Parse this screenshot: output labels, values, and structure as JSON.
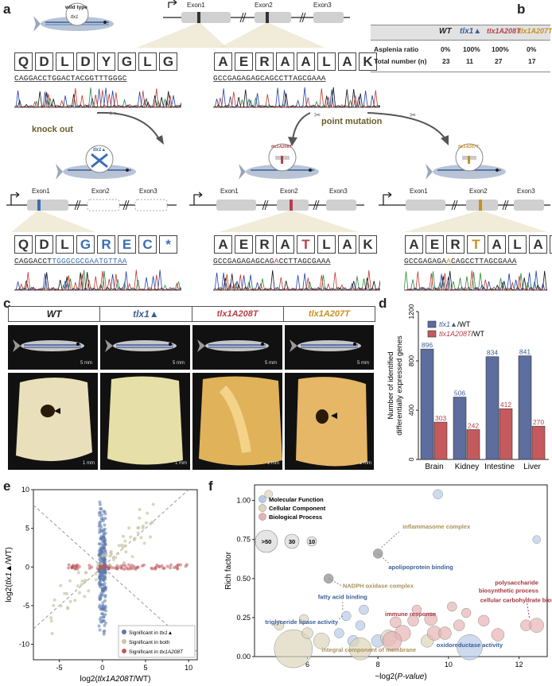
{
  "panel_labels": {
    "a": "a",
    "b": "b",
    "c": "c",
    "d": "d",
    "e": "e",
    "f": "f"
  },
  "panel_a": {
    "wild_type_label": "wild type",
    "gene_label": "tlx1",
    "exons": [
      "Exon1",
      "Exon2",
      "Exon3"
    ],
    "wt_seq1_aa": [
      "Q",
      "D",
      "L",
      "D",
      "Y",
      "G",
      "L",
      "G"
    ],
    "wt_seq1_dna": "CAGGACCTGGACTACGGTTTGGGC",
    "wt_seq2_aa": [
      "A",
      "E",
      "R",
      "A",
      "A",
      "L",
      "A",
      "K"
    ],
    "wt_seq2_dna": "GCCGAGAGAGCAGCCTTAGCGAAA",
    "knock_out_label": "knock out",
    "point_mutation_label": "point mutation",
    "ko_aa": [
      "Q",
      "D",
      "L",
      "G",
      "R",
      "E",
      "C",
      "*"
    ],
    "ko_dna_pre": "CAGGACCT",
    "ko_dna_mut": "TGGGCGCGAATGTTAA",
    "a208t_aa": [
      "A",
      "E",
      "R",
      "A",
      "T",
      "L",
      "A",
      "K"
    ],
    "a208t_dna_pre": "GCCGAGAGAGCAG",
    "a208t_dna_mut": "A",
    "a208t_dna_post": "CCTTAGCGAAA",
    "a207t_aa": [
      "A",
      "E",
      "R",
      "T",
      "A",
      "L",
      "A",
      "K"
    ],
    "a207t_dna_pre": "GCCGAGAGA",
    "a207t_dna_mut": "A",
    "a207t_dna_post": "CAGCCTTAGCGAAA",
    "ko_fish_label": "tlx1▲",
    "a208t_fish_label": "tlx1A208T",
    "a207t_fish_label": "tlx1A207T"
  },
  "panel_b": {
    "headers": [
      "WT",
      "tlx1▲",
      "tlx1A208T",
      "tlx1A207T"
    ],
    "rows": [
      {
        "label": "Asplenia ratio",
        "values": [
          "0%",
          "100%",
          "100%",
          "0%"
        ]
      },
      {
        "label": "Total number (n)",
        "values": [
          "23",
          "11",
          "27",
          "17"
        ]
      }
    ]
  },
  "panel_c": {
    "columns": [
      "WT",
      "tlx1▲",
      "tlx1A208T",
      "tlx1A207T"
    ],
    "scale_top": "5 mm",
    "scale_bottom": "1 mm"
  },
  "colors": {
    "blue": "#3a5f9a",
    "red": "#b5404a",
    "orange": "#c9901f",
    "gray_bar": "#5c6d9e",
    "red_bar": "#c45a5e"
  },
  "chart_data": [
    {
      "type": "bar",
      "ylabel": "Number of identified differentially expressed genes",
      "categories": [
        "Brain",
        "Kidney",
        "Intestine",
        "Liver"
      ],
      "ylim": [
        0,
        1200
      ],
      "yticks": [
        0,
        400,
        800,
        1200
      ],
      "legend": [
        "tlx1▲/WT",
        "tlx1A208T/WT"
      ],
      "series": [
        {
          "name": "tlx1▲/WT",
          "values": [
            896,
            506,
            834,
            841
          ]
        },
        {
          "name": "tlx1A208T/WT",
          "values": [
            303,
            242,
            412,
            270
          ]
        }
      ]
    },
    {
      "type": "scatter",
      "xlabel": "log2(tlx1A208T/WT)",
      "ylabel": "log2(tlx1▲/WT)",
      "xlim": [
        -8,
        11
      ],
      "ylim": [
        -12,
        10
      ],
      "xticks": [
        -5,
        0,
        5,
        10
      ],
      "yticks": [
        -10,
        -5,
        0,
        5,
        10
      ],
      "legend": [
        "Significant in tlx1▲",
        "Significant in both",
        "Significant in tlx1A208T"
      ]
    },
    {
      "type": "scatter",
      "xlabel": "−log2(P-value)",
      "ylabel": "Rich factor",
      "xlim": [
        4.5,
        12.8
      ],
      "ylim": [
        0,
        1.1
      ],
      "xticks": [
        6,
        8,
        10,
        12
      ],
      "yticks": [
        0,
        0.25,
        0.5,
        0.75,
        1.0
      ],
      "legend": [
        "Molecular Function",
        "Cellular Component",
        "Biological Process"
      ],
      "size_legend": [
        ">50",
        "30",
        "10"
      ],
      "annotations": [
        "inflammasome complex",
        "apolipoprotein binding",
        "NADPH oxidase complex",
        "polysaccharide biosynthetic process",
        "fatty acid binding",
        "cellular carbohydrate biosynthetic process",
        "triglyceride lipase activity",
        "immune response",
        "integral component of membrane",
        "oxidoreductase activity"
      ]
    }
  ]
}
